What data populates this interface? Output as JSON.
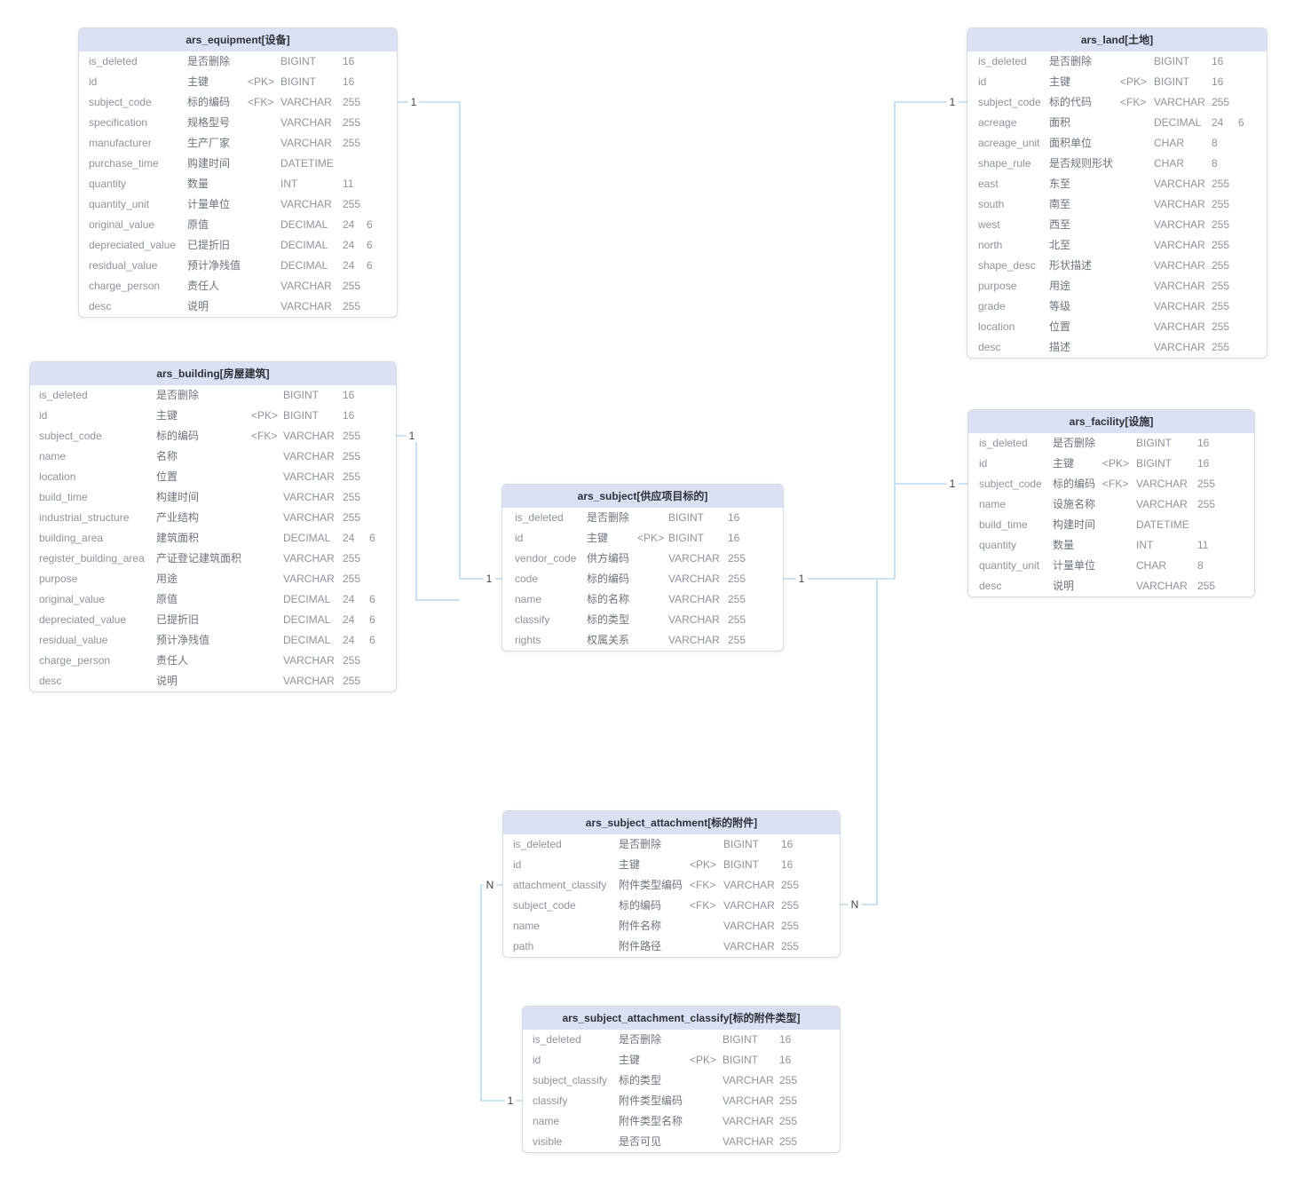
{
  "diagram": {
    "background": "#ffffff",
    "palette": {
      "header_bg": "#dbe0f5",
      "table_bg": "#ffffff",
      "table_border": "#d9dbe0",
      "title_color": "#2e3238",
      "field_color": "#8f939b",
      "label_color": "#6e737b",
      "line_color": "#b9d9f0",
      "cardinality_color": "#3f4247"
    },
    "tables": [
      {
        "id": "ars_equipment",
        "title": "ars_equipment[设备]",
        "fields": [
          {
            "name": "is_deleted",
            "label": "是否删除",
            "key": "",
            "type": "BIGINT",
            "len": "16",
            "scale": ""
          },
          {
            "name": "id",
            "label": "主键",
            "key": "<PK>",
            "type": "BIGINT",
            "len": "16",
            "scale": ""
          },
          {
            "name": "subject_code",
            "label": "标的编码",
            "key": "<FK>",
            "type": "VARCHAR",
            "len": "255",
            "scale": ""
          },
          {
            "name": "specification",
            "label": "规格型号",
            "key": "",
            "type": "VARCHAR",
            "len": "255",
            "scale": ""
          },
          {
            "name": "manufacturer",
            "label": "生产厂家",
            "key": "",
            "type": "VARCHAR",
            "len": "255",
            "scale": ""
          },
          {
            "name": "purchase_time",
            "label": "购建时间",
            "key": "",
            "type": "DATETIME",
            "len": "",
            "scale": ""
          },
          {
            "name": "quantity",
            "label": "数量",
            "key": "",
            "type": "INT",
            "len": "11",
            "scale": ""
          },
          {
            "name": "quantity_unit",
            "label": "计量单位",
            "key": "",
            "type": "VARCHAR",
            "len": "255",
            "scale": ""
          },
          {
            "name": "original_value",
            "label": "原值",
            "key": "",
            "type": "DECIMAL",
            "len": "24",
            "scale": "6"
          },
          {
            "name": "depreciated_value",
            "label": "已提折旧",
            "key": "",
            "type": "DECIMAL",
            "len": "24",
            "scale": "6"
          },
          {
            "name": "residual_value",
            "label": "预计净残值",
            "key": "",
            "type": "DECIMAL",
            "len": "24",
            "scale": "6"
          },
          {
            "name": "charge_person",
            "label": "责任人",
            "key": "",
            "type": "VARCHAR",
            "len": "255",
            "scale": ""
          },
          {
            "name": "desc",
            "label": "说明",
            "key": "",
            "type": "VARCHAR",
            "len": "255",
            "scale": ""
          }
        ]
      },
      {
        "id": "ars_building",
        "title": "ars_building[房屋建筑]",
        "fields": [
          {
            "name": "is_deleted",
            "label": "是否删除",
            "key": "",
            "type": "BIGINT",
            "len": "16",
            "scale": ""
          },
          {
            "name": "id",
            "label": "主键",
            "key": "<PK>",
            "type": "BIGINT",
            "len": "16",
            "scale": ""
          },
          {
            "name": "subject_code",
            "label": "标的编码",
            "key": "<FK>",
            "type": "VARCHAR",
            "len": "255",
            "scale": ""
          },
          {
            "name": "name",
            "label": "名称",
            "key": "",
            "type": "VARCHAR",
            "len": "255",
            "scale": ""
          },
          {
            "name": "location",
            "label": "位置",
            "key": "",
            "type": "VARCHAR",
            "len": "255",
            "scale": ""
          },
          {
            "name": "build_time",
            "label": "构建时间",
            "key": "",
            "type": "VARCHAR",
            "len": "255",
            "scale": ""
          },
          {
            "name": "industrial_structure",
            "label": "产业结构",
            "key": "",
            "type": "VARCHAR",
            "len": "255",
            "scale": ""
          },
          {
            "name": "building_area",
            "label": "建筑面积",
            "key": "",
            "type": "DECIMAL",
            "len": "24",
            "scale": "6"
          },
          {
            "name": "register_building_area",
            "label": "产证登记建筑面积",
            "key": "",
            "type": "VARCHAR",
            "len": "255",
            "scale": ""
          },
          {
            "name": "purpose",
            "label": "用途",
            "key": "",
            "type": "VARCHAR",
            "len": "255",
            "scale": ""
          },
          {
            "name": "original_value",
            "label": "原值",
            "key": "",
            "type": "DECIMAL",
            "len": "24",
            "scale": "6"
          },
          {
            "name": "depreciated_value",
            "label": "已提折旧",
            "key": "",
            "type": "DECIMAL",
            "len": "24",
            "scale": "6"
          },
          {
            "name": "residual_value",
            "label": "预计净残值",
            "key": "",
            "type": "DECIMAL",
            "len": "24",
            "scale": "6"
          },
          {
            "name": "charge_person",
            "label": "责任人",
            "key": "",
            "type": "VARCHAR",
            "len": "255",
            "scale": ""
          },
          {
            "name": "desc",
            "label": "说明",
            "key": "",
            "type": "VARCHAR",
            "len": "255",
            "scale": ""
          }
        ]
      },
      {
        "id": "ars_subject",
        "title": "ars_subject[供应项目标的]",
        "fields": [
          {
            "name": "is_deleted",
            "label": "是否删除",
            "key": "",
            "type": "BIGINT",
            "len": "16",
            "scale": ""
          },
          {
            "name": "id",
            "label": "主键",
            "key": "<PK>",
            "type": "BIGINT",
            "len": "16",
            "scale": ""
          },
          {
            "name": "vendor_code",
            "label": "供方编码",
            "key": "",
            "type": "VARCHAR",
            "len": "255",
            "scale": ""
          },
          {
            "name": "code",
            "label": "标的编码",
            "key": "",
            "type": "VARCHAR",
            "len": "255",
            "scale": ""
          },
          {
            "name": "name",
            "label": "标的名称",
            "key": "",
            "type": "VARCHAR",
            "len": "255",
            "scale": ""
          },
          {
            "name": "classify",
            "label": "标的类型",
            "key": "",
            "type": "VARCHAR",
            "len": "255",
            "scale": ""
          },
          {
            "name": "rights",
            "label": "权属关系",
            "key": "",
            "type": "VARCHAR",
            "len": "255",
            "scale": ""
          }
        ]
      },
      {
        "id": "ars_land",
        "title": "ars_land[土地]",
        "fields": [
          {
            "name": "is_deleted",
            "label": "是否删除",
            "key": "",
            "type": "BIGINT",
            "len": "16",
            "scale": ""
          },
          {
            "name": "id",
            "label": "主键",
            "key": "<PK>",
            "type": "BIGINT",
            "len": "16",
            "scale": ""
          },
          {
            "name": "subject_code",
            "label": "标的代码",
            "key": "<FK>",
            "type": "VARCHAR",
            "len": "255",
            "scale": ""
          },
          {
            "name": "acreage",
            "label": "面积",
            "key": "",
            "type": "DECIMAL",
            "len": "24",
            "scale": "6"
          },
          {
            "name": "acreage_unit",
            "label": "面积单位",
            "key": "",
            "type": "CHAR",
            "len": "8",
            "scale": ""
          },
          {
            "name": "shape_rule",
            "label": "是否规则形状",
            "key": "",
            "type": "CHAR",
            "len": "8",
            "scale": ""
          },
          {
            "name": "east",
            "label": "东至",
            "key": "",
            "type": "VARCHAR",
            "len": "255",
            "scale": ""
          },
          {
            "name": "south",
            "label": "南至",
            "key": "",
            "type": "VARCHAR",
            "len": "255",
            "scale": ""
          },
          {
            "name": "west",
            "label": "西至",
            "key": "",
            "type": "VARCHAR",
            "len": "255",
            "scale": ""
          },
          {
            "name": "north",
            "label": "北至",
            "key": "",
            "type": "VARCHAR",
            "len": "255",
            "scale": ""
          },
          {
            "name": "shape_desc",
            "label": "形状描述",
            "key": "",
            "type": "VARCHAR",
            "len": "255",
            "scale": ""
          },
          {
            "name": "purpose",
            "label": "用途",
            "key": "",
            "type": "VARCHAR",
            "len": "255",
            "scale": ""
          },
          {
            "name": "grade",
            "label": "等级",
            "key": "",
            "type": "VARCHAR",
            "len": "255",
            "scale": ""
          },
          {
            "name": "location",
            "label": "位置",
            "key": "",
            "type": "VARCHAR",
            "len": "255",
            "scale": ""
          },
          {
            "name": "desc",
            "label": "描述",
            "key": "",
            "type": "VARCHAR",
            "len": "255",
            "scale": ""
          }
        ]
      },
      {
        "id": "ars_facility",
        "title": "ars_facility[设施]",
        "fields": [
          {
            "name": "is_deleted",
            "label": "是否删除",
            "key": "",
            "type": "BIGINT",
            "len": "16",
            "scale": ""
          },
          {
            "name": "id",
            "label": "主键",
            "key": "<PK>",
            "type": "BIGINT",
            "len": "16",
            "scale": ""
          },
          {
            "name": "subject_code",
            "label": "标的编码",
            "key": "<FK>",
            "type": "VARCHAR",
            "len": "255",
            "scale": ""
          },
          {
            "name": "name",
            "label": "设施名称",
            "key": "",
            "type": "VARCHAR",
            "len": "255",
            "scale": ""
          },
          {
            "name": "build_time",
            "label": "构建时间",
            "key": "",
            "type": "DATETIME",
            "len": "",
            "scale": ""
          },
          {
            "name": "quantity",
            "label": "数量",
            "key": "",
            "type": "INT",
            "len": "11",
            "scale": ""
          },
          {
            "name": "quantity_unit",
            "label": "计量单位",
            "key": "",
            "type": "CHAR",
            "len": "8",
            "scale": ""
          },
          {
            "name": "desc",
            "label": "说明",
            "key": "",
            "type": "VARCHAR",
            "len": "255",
            "scale": ""
          }
        ]
      },
      {
        "id": "ars_subject_attachment",
        "title": "ars_subject_attachment[标的附件]",
        "fields": [
          {
            "name": "is_deleted",
            "label": "是否删除",
            "key": "",
            "type": "BIGINT",
            "len": "16",
            "scale": ""
          },
          {
            "name": "id",
            "label": "主键",
            "key": "<PK>",
            "type": "BIGINT",
            "len": "16",
            "scale": ""
          },
          {
            "name": "attachment_classify",
            "label": "附件类型编码",
            "key": "<FK>",
            "type": "VARCHAR",
            "len": "255",
            "scale": ""
          },
          {
            "name": "subject_code",
            "label": "标的编码",
            "key": "<FK>",
            "type": "VARCHAR",
            "len": "255",
            "scale": ""
          },
          {
            "name": "name",
            "label": "附件名称",
            "key": "",
            "type": "VARCHAR",
            "len": "255",
            "scale": ""
          },
          {
            "name": "path",
            "label": "附件路径",
            "key": "",
            "type": "VARCHAR",
            "len": "255",
            "scale": ""
          }
        ]
      },
      {
        "id": "ars_subject_attachment_classify",
        "title": "ars_subject_attachment_classify[标的附件类型]",
        "fields": [
          {
            "name": "is_deleted",
            "label": "是否删除",
            "key": "",
            "type": "BIGINT",
            "len": "16",
            "scale": ""
          },
          {
            "name": "id",
            "label": "主键",
            "key": "<PK>",
            "type": "BIGINT",
            "len": "16",
            "scale": ""
          },
          {
            "name": "subject_classify",
            "label": "标的类型",
            "key": "",
            "type": "VARCHAR",
            "len": "255",
            "scale": ""
          },
          {
            "name": "classify",
            "label": "附件类型编码",
            "key": "",
            "type": "VARCHAR",
            "len": "255",
            "scale": ""
          },
          {
            "name": "name",
            "label": "附件类型名称",
            "key": "",
            "type": "VARCHAR",
            "len": "255",
            "scale": ""
          },
          {
            "name": "visible",
            "label": "是否可见",
            "key": "",
            "type": "VARCHAR",
            "len": "255",
            "scale": ""
          }
        ]
      }
    ],
    "relations": [
      {
        "from_table": "ars_equipment",
        "from_field": "subject_code",
        "to_table": "ars_subject",
        "to_field": "code",
        "from_card": "1",
        "to_card": "1"
      },
      {
        "from_table": "ars_building",
        "from_field": "subject_code",
        "to_table": "ars_subject",
        "to_field": "code",
        "from_card": "1",
        "to_card": "1"
      },
      {
        "from_table": "ars_land",
        "from_field": "subject_code",
        "to_table": "ars_subject",
        "to_field": "code",
        "from_card": "1",
        "to_card": "1"
      },
      {
        "from_table": "ars_facility",
        "from_field": "subject_code",
        "to_table": "ars_subject",
        "to_field": "code",
        "from_card": "1",
        "to_card": "1"
      },
      {
        "from_table": "ars_subject_attachment",
        "from_field": "subject_code",
        "to_table": "ars_subject",
        "to_field": "code",
        "from_card": "N",
        "to_card": "1"
      },
      {
        "from_table": "ars_subject_attachment",
        "from_field": "attachment_classify",
        "to_table": "ars_subject_attachment_classify",
        "to_field": "classify",
        "from_card": "N",
        "to_card": "1"
      }
    ]
  }
}
